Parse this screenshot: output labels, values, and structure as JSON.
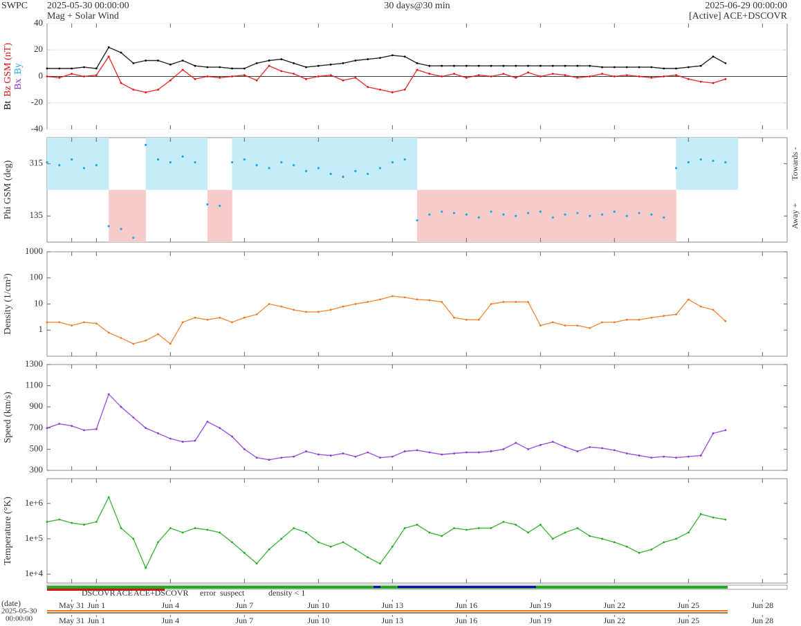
{
  "header": {
    "org": "SWPC",
    "start": "2025-05-30 00:00:00",
    "subtitle": "Mag + Solar Wind",
    "span": "30 days@30 min",
    "end": "2025-06-29 00:00:00",
    "source": "[Active] ACE+DSCOVR"
  },
  "time_axis": {
    "xlim": [
      "2025-05-30T00:00",
      "2025-06-29T00:00"
    ],
    "xticks": [
      {
        "value": "2025-05-31T00:00",
        "label": "May 31"
      },
      {
        "value": "2025-06-01T00:00",
        "label": "Jun 1"
      },
      {
        "value": "2025-06-04T00:00",
        "label": "Jun 4"
      },
      {
        "value": "2025-06-07T00:00",
        "label": "Jun 7"
      },
      {
        "value": "2025-06-10T00:00",
        "label": "Jun 10"
      },
      {
        "value": "2025-06-13T00:00",
        "label": "Jun 13"
      },
      {
        "value": "2025-06-16T00:00",
        "label": "Jun 16"
      },
      {
        "value": "2025-06-19T00:00",
        "label": "Jun 19"
      },
      {
        "value": "2025-06-22T00:00",
        "label": "Jun 22"
      },
      {
        "value": "2025-06-25T00:00",
        "label": "Jun 25"
      },
      {
        "value": "2025-06-28T00:00",
        "label": "Jun 28"
      }
    ],
    "x": [
      "2025-05-30T00:00",
      "2025-05-30T12:00",
      "2025-05-31T00:00",
      "2025-05-31T12:00",
      "2025-06-01T00:00",
      "2025-06-01T12:00",
      "2025-06-02T00:00",
      "2025-06-02T12:00",
      "2025-06-03T00:00",
      "2025-06-03T12:00",
      "2025-06-04T00:00",
      "2025-06-04T12:00",
      "2025-06-05T00:00",
      "2025-06-05T12:00",
      "2025-06-06T00:00",
      "2025-06-06T12:00",
      "2025-06-07T00:00",
      "2025-06-07T12:00",
      "2025-06-08T00:00",
      "2025-06-08T12:00",
      "2025-06-09T00:00",
      "2025-06-09T12:00",
      "2025-06-10T00:00",
      "2025-06-10T12:00",
      "2025-06-11T00:00",
      "2025-06-11T12:00",
      "2025-06-12T00:00",
      "2025-06-12T12:00",
      "2025-06-13T00:00",
      "2025-06-13T12:00",
      "2025-06-14T00:00",
      "2025-06-14T12:00",
      "2025-06-15T00:00",
      "2025-06-15T12:00",
      "2025-06-16T00:00",
      "2025-06-16T12:00",
      "2025-06-17T00:00",
      "2025-06-17T12:00",
      "2025-06-18T00:00",
      "2025-06-18T12:00",
      "2025-06-19T00:00",
      "2025-06-19T12:00",
      "2025-06-20T00:00",
      "2025-06-20T12:00",
      "2025-06-21T00:00",
      "2025-06-21T12:00",
      "2025-06-22T00:00",
      "2025-06-22T12:00",
      "2025-06-23T00:00",
      "2025-06-23T12:00",
      "2025-06-24T00:00",
      "2025-06-24T12:00",
      "2025-06-25T00:00",
      "2025-06-25T12:00",
      "2025-06-26T00:00",
      "2025-06-26T12:00"
    ]
  },
  "chart_data": [
    {
      "type": "line",
      "ylabel_parts": [
        {
          "text": "Bt",
          "color": "#000000"
        },
        {
          "text": "Bz GSM (nT)",
          "color": "#e01010"
        }
      ],
      "ylabel2_parts": [
        {
          "text": "Bx",
          "color": "#8a2be2"
        },
        {
          "text": "By",
          "color": "#1ab0e8"
        }
      ],
      "ylim": [
        -40,
        40
      ],
      "yticks": [
        -40,
        -20,
        0,
        20,
        40
      ],
      "grid": true,
      "series": [
        {
          "name": "Bt",
          "color": "#000000",
          "values": [
            6,
            6,
            6,
            7,
            6,
            22,
            18,
            10,
            12,
            12,
            9,
            12,
            8,
            7,
            7,
            6,
            6,
            10,
            12,
            13,
            10,
            7,
            8,
            9,
            10,
            12,
            13,
            14,
            16,
            15,
            10,
            8,
            8,
            8,
            8,
            8,
            8,
            8,
            8,
            8,
            8,
            8,
            8,
            8,
            8,
            7,
            7,
            7,
            7,
            7,
            6,
            6,
            7,
            8,
            15,
            10
          ]
        },
        {
          "name": "Bz",
          "color": "#e01010",
          "values": [
            0,
            -1,
            2,
            0,
            1,
            15,
            -5,
            -10,
            -12,
            -10,
            -3,
            5,
            -2,
            0,
            -1,
            0,
            1,
            -3,
            8,
            4,
            2,
            -2,
            0,
            1,
            -3,
            -1,
            -8,
            -10,
            -12,
            -10,
            5,
            2,
            0,
            2,
            -1,
            1,
            0,
            2,
            -1,
            3,
            0,
            2,
            1,
            -1,
            0,
            2,
            0,
            1,
            0,
            -1,
            0,
            1,
            -2,
            -4,
            -5,
            -2
          ]
        }
      ]
    },
    {
      "type": "scatter",
      "ylabel": "Phi GSM (deg)",
      "right_labels": [
        "Towards -",
        "Away +"
      ],
      "ylim": [
        45,
        405
      ],
      "yticks": [
        135,
        315
      ],
      "grid": false,
      "split": 225,
      "bands": [
        "#c6ecf8",
        "#f8cccc"
      ],
      "series": [
        {
          "name": "Phi",
          "color": "#1aa8e0",
          "values": [
            320,
            310,
            330,
            300,
            310,
            100,
            90,
            60,
            380,
            330,
            320,
            340,
            320,
            175,
            170,
            320,
            330,
            310,
            300,
            320,
            310,
            290,
            300,
            280,
            270,
            290,
            280,
            300,
            320,
            330,
            120,
            140,
            150,
            145,
            140,
            130,
            150,
            140,
            135,
            145,
            150,
            130,
            140,
            145,
            135,
            140,
            150,
            135,
            145,
            140,
            130,
            300,
            320,
            330,
            325,
            320
          ]
        }
      ]
    },
    {
      "type": "line",
      "ylabel": "Density (1/cm³)",
      "log": true,
      "ylim": [
        0.1,
        1000
      ],
      "yticks": [
        1,
        10,
        100,
        1000
      ],
      "grid": false,
      "series": [
        {
          "name": "Density",
          "color": "#f07820",
          "values": [
            2,
            2,
            1.5,
            2,
            1.8,
            0.8,
            0.5,
            0.3,
            0.4,
            0.7,
            0.3,
            2,
            3,
            2.5,
            3,
            2,
            3,
            4,
            10,
            8,
            6,
            5,
            5,
            6,
            8,
            10,
            12,
            15,
            20,
            18,
            15,
            14,
            12,
            3,
            2.5,
            2.5,
            10,
            12,
            12,
            12,
            1.5,
            2,
            1.5,
            1.5,
            1.2,
            2,
            2,
            2.5,
            2.5,
            3,
            3.5,
            4,
            15,
            8,
            6,
            2.2
          ]
        }
      ]
    },
    {
      "type": "line",
      "ylabel": "Speed (km/s)",
      "ylim": [
        300,
        1300
      ],
      "yticks": [
        300,
        500,
        700,
        900,
        1100,
        1300
      ],
      "grid": false,
      "series": [
        {
          "name": "Speed",
          "color": "#8a3ad8",
          "values": [
            700,
            740,
            720,
            680,
            690,
            1020,
            900,
            800,
            700,
            650,
            600,
            570,
            580,
            760,
            700,
            620,
            500,
            420,
            400,
            420,
            430,
            480,
            450,
            440,
            460,
            430,
            470,
            420,
            430,
            480,
            490,
            470,
            450,
            460,
            470,
            470,
            480,
            500,
            560,
            500,
            540,
            570,
            520,
            480,
            520,
            510,
            490,
            460,
            440,
            420,
            430,
            420,
            430,
            440,
            650,
            680
          ]
        }
      ]
    },
    {
      "type": "line",
      "ylabel": "Temperature (°K)",
      "log": true,
      "ylim": [
        5600,
        5000000
      ],
      "yticks": [
        {
          "value": 10000,
          "label": "1e+4"
        },
        {
          "value": 100000,
          "label": "1e+5"
        },
        {
          "value": 1000000,
          "label": "1e+6"
        }
      ],
      "grid": false,
      "series": [
        {
          "name": "Temperature",
          "color": "#22aa22",
          "values": [
            300000,
            350000,
            280000,
            250000,
            300000,
            1500000,
            200000,
            100000,
            15000,
            80000,
            200000,
            150000,
            200000,
            180000,
            150000,
            80000,
            40000,
            20000,
            50000,
            100000,
            200000,
            150000,
            80000,
            60000,
            80000,
            50000,
            30000,
            20000,
            60000,
            200000,
            250000,
            150000,
            120000,
            200000,
            180000,
            200000,
            200000,
            300000,
            250000,
            150000,
            250000,
            100000,
            150000,
            200000,
            120000,
            100000,
            80000,
            60000,
            40000,
            50000,
            80000,
            100000,
            150000,
            500000,
            400000,
            350000
          ]
        }
      ]
    }
  ],
  "source_legend": [
    {
      "label": "DSCOVR",
      "color": "#1010c0"
    },
    {
      "label": "ACE",
      "color": "#22aa22"
    },
    {
      "label": "ACE+DSCOVR",
      "color": "#e020e0"
    },
    {
      "label": "error",
      "color": "#e01010"
    },
    {
      "label": "suspect",
      "color": "#e0c000"
    },
    {
      "label": "density < 1",
      "color": "#f07820"
    }
  ],
  "bottom_axis": {
    "label": "(date)",
    "start_date": "2025-05-30",
    "start_time": "00:00:00"
  }
}
